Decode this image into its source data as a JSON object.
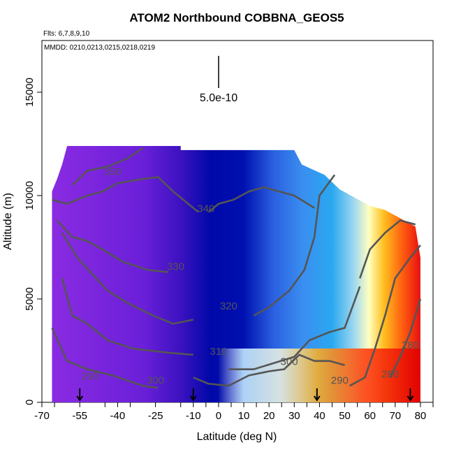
{
  "chart_data": {
    "type": "heatmap",
    "title": "ATOM2 Northbound COBBNA_GEOS5",
    "flights_note": "Flts: 6,7,8,9,10",
    "dates_note": "MMDD: 0210,0213,0215,0218,0219",
    "xlabel": "Latitude (deg N)",
    "ylabel": "Altitude (m)",
    "xlim": [
      -70,
      85
    ],
    "ylim": [
      0,
      17500
    ],
    "x_ticks": [
      -70,
      -55,
      -40,
      -25,
      -10,
      0,
      10,
      20,
      30,
      40,
      50,
      60,
      70,
      80
    ],
    "y_ticks": [
      0,
      5000,
      10000,
      15000
    ],
    "scale_bar_label": "5.0e-10",
    "contours": [
      {
        "label": "350",
        "x": -42,
        "y": 11000
      },
      {
        "label": "340",
        "x": -5,
        "y": 9200
      },
      {
        "label": "330",
        "x": -17,
        "y": 6400
      },
      {
        "label": "320",
        "x": 4,
        "y": 4500
      },
      {
        "label": "310",
        "x": 0,
        "y": 2300
      },
      {
        "label": "300",
        "x": -25,
        "y": 900
      },
      {
        "label": "300",
        "x": 28,
        "y": 1800
      },
      {
        "label": "290",
        "x": -51,
        "y": 1100
      },
      {
        "label": "290",
        "x": 48,
        "y": 900
      },
      {
        "label": "280",
        "x": 68,
        "y": 1200
      },
      {
        "label": "280",
        "x": 76,
        "y": 2600
      }
    ],
    "flight_markers_lat": [
      -55,
      -10,
      39,
      76
    ]
  },
  "colors": {
    "background": "#ffffff",
    "contour": "#555555"
  }
}
